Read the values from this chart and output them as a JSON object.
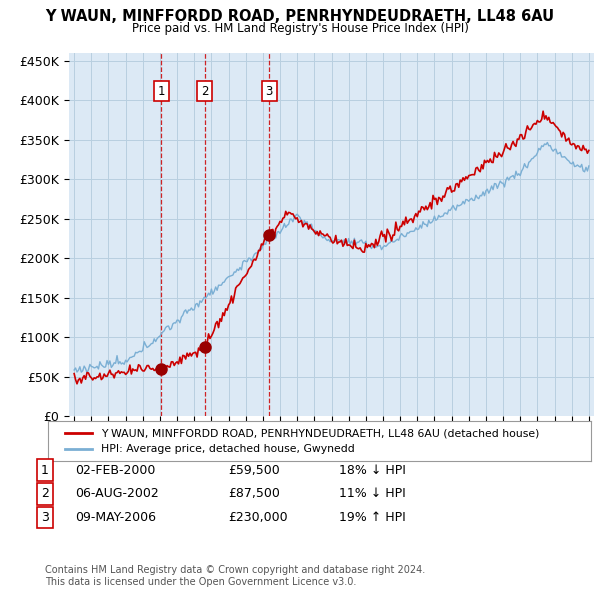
{
  "title": "Y WAUN, MINFFORDD ROAD, PENRHYNDEUDRAETH, LL48 6AU",
  "subtitle": "Price paid vs. HM Land Registry's House Price Index (HPI)",
  "ylim": [
    0,
    460000
  ],
  "yticks": [
    0,
    50000,
    100000,
    150000,
    200000,
    250000,
    300000,
    350000,
    400000,
    450000
  ],
  "ytick_labels": [
    "£0",
    "£50K",
    "£100K",
    "£150K",
    "£200K",
    "£250K",
    "£300K",
    "£350K",
    "£400K",
    "£450K"
  ],
  "xlim_start": 1994.7,
  "xlim_end": 2025.3,
  "sale_dates": [
    2000.09,
    2002.6,
    2006.36
  ],
  "sale_prices": [
    59500,
    87500,
    230000
  ],
  "sale_labels": [
    "1",
    "2",
    "3"
  ],
  "red_line_color": "#cc0000",
  "blue_line_color": "#7bafd4",
  "sale_dot_color": "#990000",
  "vline_color": "#cc0000",
  "chart_bg_color": "#dce9f5",
  "background_color": "#ffffff",
  "grid_color": "#b8cfe0",
  "legend_entries": [
    "Y WAUN, MINFFORDD ROAD, PENRHYNDEUDRAETH, LL48 6AU (detached house)",
    "HPI: Average price, detached house, Gwynedd"
  ],
  "table_rows": [
    {
      "num": "1",
      "date": "02-FEB-2000",
      "price": "£59,500",
      "hpi": "18% ↓ HPI"
    },
    {
      "num": "2",
      "date": "06-AUG-2002",
      "price": "£87,500",
      "hpi": "11% ↓ HPI"
    },
    {
      "num": "3",
      "date": "09-MAY-2006",
      "price": "£230,000",
      "hpi": "19% ↑ HPI"
    }
  ],
  "footer": "Contains HM Land Registry data © Crown copyright and database right 2024.\nThis data is licensed under the Open Government Licence v3.0."
}
